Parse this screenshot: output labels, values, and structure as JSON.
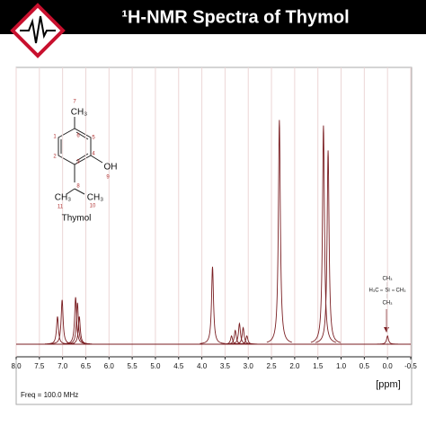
{
  "chart_data": {
    "type": "nmr",
    "title": "¹H-NMR Spectra of Thymol",
    "x_label": "[ppm]",
    "note": "Freq = 100.0 MHz",
    "color": "#7a1e22",
    "grid": true,
    "xlim": [
      8.0,
      -0.5
    ],
    "ylim": [
      0,
      100
    ],
    "xticks": [
      {
        "value": 8,
        "label": "8.0"
      },
      7.5,
      {
        "value": 7,
        "label": "7.0"
      },
      6.5,
      {
        "value": 6,
        "label": "6.0"
      },
      5.5,
      {
        "value": 5,
        "label": "5.0"
      },
      4.5,
      {
        "value": 4,
        "label": "4.0"
      },
      3.5,
      {
        "value": 3,
        "label": "3.0"
      },
      2.5,
      {
        "value": 2,
        "label": "2.0"
      },
      1.5,
      {
        "value": 1,
        "label": "1.0"
      },
      0.5,
      {
        "value": 0,
        "label": "0.0"
      },
      -0.5
    ],
    "x": [
      7.11,
      7.01,
      6.72,
      6.68,
      6.64,
      3.77,
      3.36,
      3.28,
      3.19,
      3.11,
      3.03,
      2.33,
      1.38,
      1.28,
      0.0
    ],
    "values": [
      10,
      16,
      17,
      15,
      10,
      28,
      3,
      5,
      7.5,
      6,
      3,
      81,
      79,
      70,
      3
    ],
    "structure_labels": [
      "7",
      "CH₃",
      "1",
      "6",
      "5",
      "4",
      "2",
      "3",
      "OH",
      "9",
      "8",
      "CH₃",
      "CH₃",
      "11",
      "10",
      "Thymol"
    ],
    "tms_labels": [
      "CH₃",
      "H₃C",
      "Si",
      "CH₃",
      "CH₃"
    ]
  }
}
